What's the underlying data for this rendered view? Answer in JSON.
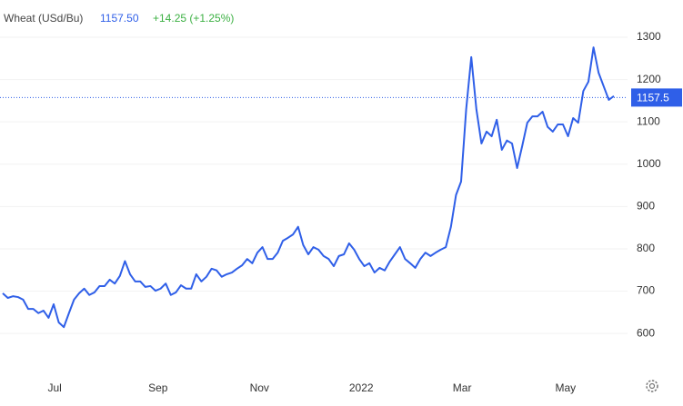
{
  "chart_data": {
    "type": "line",
    "header": {
      "name": "Wheat (USd/Bu)",
      "price": "1157.50",
      "change": "+14.25 (+1.25%)"
    },
    "xlim": [
      0,
      120
    ],
    "xticks": [
      {
        "value": 10.2,
        "label": "Jul"
      },
      {
        "value": 30.5,
        "label": "Sep"
      },
      {
        "value": 50.4,
        "label": "Nov"
      },
      {
        "value": 70.4,
        "label": "2022"
      },
      {
        "value": 90.2,
        "label": "Mar"
      },
      {
        "value": 110.5,
        "label": "May"
      }
    ],
    "ylim": [
      508,
      1388
    ],
    "yticks": [
      600,
      700,
      800,
      900,
      1000,
      1100,
      1200,
      1300
    ],
    "grid": true,
    "color": "#2f5fe8",
    "current": {
      "value": 1157.5,
      "label": "1157.5"
    },
    "values": [
      695,
      684,
      688,
      686,
      680,
      658,
      658,
      648,
      654,
      637,
      669,
      626,
      615,
      648,
      680,
      695,
      706,
      691,
      697,
      712,
      712,
      727,
      718,
      736,
      771,
      740,
      723,
      723,
      710,
      712,
      701,
      706,
      718,
      691,
      697,
      714,
      706,
      706,
      740,
      723,
      734,
      753,
      749,
      734,
      740,
      744,
      753,
      761,
      776,
      766,
      791,
      804,
      776,
      776,
      791,
      819,
      826,
      834,
      852,
      809,
      787,
      804,
      798,
      783,
      776,
      759,
      783,
      787,
      813,
      798,
      776,
      759,
      766,
      744,
      755,
      749,
      770,
      787,
      804,
      776,
      766,
      755,
      776,
      791,
      783,
      791,
      798,
      804,
      852,
      927,
      959,
      1130,
      1253,
      1130,
      1049,
      1077,
      1066,
      1105,
      1034,
      1056,
      1049,
      991,
      1043,
      1098,
      1113,
      1113,
      1124,
      1088,
      1077,
      1094,
      1094,
      1066,
      1109,
      1098,
      1173,
      1195,
      1276,
      1216,
      1184,
      1152,
      1161
    ]
  }
}
